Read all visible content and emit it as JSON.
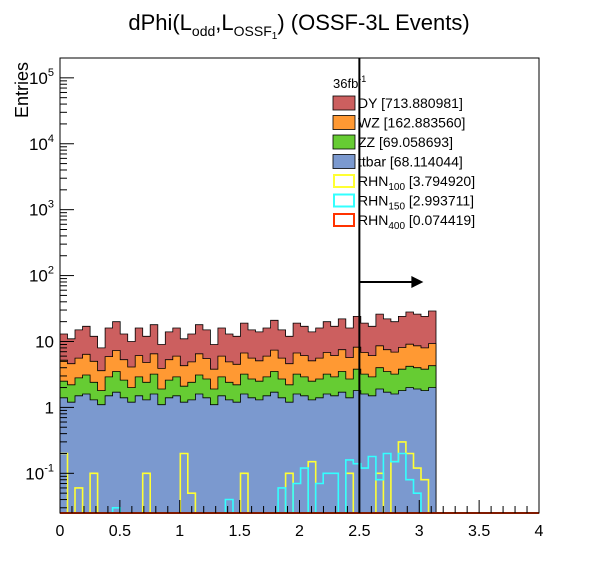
{
  "chart_data": {
    "type": "histogram-stacked-log",
    "title_parts": {
      "main": "dPhi(L",
      "sub1": "odd",
      "mid": ",L",
      "sub2": "OSSF",
      "sub3": "1",
      "end": ") (OSSF-3L Events)"
    },
    "ylabel": "Entries",
    "xlim": [
      0,
      4
    ],
    "ylim": [
      0.025,
      200000
    ],
    "y_scale": "log",
    "x_ticks": [
      "0",
      "0.5",
      "1",
      "1.5",
      "2",
      "2.5",
      "3",
      "3.5",
      "4"
    ],
    "y_ticks": [
      {
        "base": "10",
        "exp": "-1",
        "value": 0.1
      },
      {
        "base": "1",
        "exp": "",
        "value": 1
      },
      {
        "base": "10",
        "exp": "",
        "value": 10
      },
      {
        "base": "10",
        "exp": "2",
        "value": 100
      },
      {
        "base": "10",
        "exp": "3",
        "value": 1000
      },
      {
        "base": "10",
        "exp": "4",
        "value": 10000
      },
      {
        "base": "10",
        "exp": "5",
        "value": 100000
      }
    ],
    "cut_line": {
      "x": 2.5,
      "arrow": "right"
    },
    "lumi_label": {
      "text": "36fb",
      "sup": "-1"
    },
    "bin_width": 0.0628,
    "n_bins": 50,
    "stack_totals": {
      "ttbar": [
        1.4,
        1.2,
        1.5,
        1.6,
        1.3,
        1.1,
        1.5,
        1.7,
        1.4,
        1.2,
        1.5,
        1.3,
        1.6,
        1.1,
        1.4,
        1.5,
        1.2,
        1.3,
        1.6,
        1.4,
        1.1,
        1.5,
        1.3,
        1.2,
        1.6,
        1.4,
        1.3,
        1.5,
        1.7,
        1.4,
        1.2,
        1.6,
        1.5,
        1.3,
        1.4,
        1.6,
        1.5,
        1.7,
        1.4,
        1.8,
        1.6,
        1.5,
        1.9,
        1.7,
        1.6,
        1.8,
        2.0,
        1.9,
        1.8,
        2.0
      ],
      "ZZ": [
        2.5,
        2.2,
        2.8,
        3.1,
        2.4,
        1.8,
        2.9,
        3.5,
        2.6,
        2.0,
        2.9,
        2.4,
        3.2,
        1.9,
        2.6,
        2.9,
        2.1,
        2.4,
        3.1,
        2.7,
        1.9,
        2.9,
        2.4,
        2.2,
        3.2,
        2.7,
        2.5,
        2.9,
        3.5,
        2.7,
        2.2,
        3.2,
        2.9,
        2.5,
        2.7,
        3.2,
        2.9,
        3.5,
        2.7,
        3.8,
        3.2,
        2.9,
        4.0,
        3.5,
        3.2,
        3.8,
        4.2,
        4.0,
        3.8,
        4.3
      ],
      "WZ": [
        5.2,
        4.6,
        5.6,
        6.4,
        5.0,
        3.6,
        5.9,
        7.3,
        5.3,
        4.1,
        6.1,
        4.8,
        6.5,
        3.9,
        5.3,
        6.0,
        4.3,
        4.9,
        6.5,
        5.5,
        3.8,
        6.0,
        4.9,
        4.5,
        6.7,
        5.6,
        5.1,
        6.0,
        7.4,
        5.6,
        4.6,
        6.7,
        6.1,
        5.1,
        5.6,
        6.8,
        6.1,
        7.5,
        5.7,
        8.2,
        6.8,
        6.1,
        8.6,
        7.5,
        6.9,
        8.1,
        9.1,
        8.6,
        8.0,
        9.3
      ],
      "DY": [
        13,
        11,
        15,
        17,
        12,
        8,
        16,
        20,
        13,
        10,
        16,
        12,
        18,
        9,
        14,
        16,
        11,
        13,
        18,
        15,
        9,
        16,
        13,
        12,
        19,
        15,
        14,
        16,
        21,
        15,
        12,
        19,
        17,
        14,
        16,
        20,
        17,
        22,
        16,
        24,
        19,
        17,
        26,
        22,
        20,
        24,
        28,
        26,
        24,
        29
      ]
    },
    "signals": {
      "RHN100": {
        "bins": [
          [
            0,
            0.2
          ],
          [
            2,
            0.06
          ],
          [
            4,
            0.1
          ],
          [
            11,
            0.1
          ],
          [
            16,
            0.2
          ],
          [
            17,
            0.05
          ],
          [
            24,
            0.1
          ],
          [
            30,
            0.1
          ],
          [
            33,
            0.15
          ],
          [
            38,
            0.1
          ],
          [
            42,
            0.1
          ],
          [
            44,
            0.15
          ],
          [
            45,
            0.3
          ],
          [
            46,
            0.2
          ],
          [
            47,
            0.12
          ],
          [
            48,
            0.08
          ]
        ]
      },
      "RHN150": {
        "bins": [
          [
            7,
            0.03
          ],
          [
            22,
            0.04
          ],
          [
            29,
            0.06
          ],
          [
            31,
            0.07
          ],
          [
            32,
            0.12
          ],
          [
            34,
            0.07
          ],
          [
            35,
            0.1
          ],
          [
            36,
            0.1
          ],
          [
            38,
            0.16
          ],
          [
            39,
            0.14
          ],
          [
            40,
            0.12
          ],
          [
            41,
            0.18
          ],
          [
            42,
            0.08
          ],
          [
            43,
            0.2
          ],
          [
            44,
            0.15
          ],
          [
            45,
            0.2
          ],
          [
            46,
            0.08
          ],
          [
            47,
            0.05
          ]
        ]
      },
      "RHN400": {
        "bins": []
      }
    },
    "legend": [
      {
        "key": "DY",
        "name": "DY",
        "sub": "",
        "value": " [713.880981]",
        "fill": "#cc5f5f",
        "stroke": "#000000",
        "style": "fill"
      },
      {
        "key": "WZ",
        "name": "WZ",
        "sub": "",
        "value": " [162.883560]",
        "fill": "#ff9933",
        "stroke": "#000000",
        "style": "fill"
      },
      {
        "key": "ZZ",
        "name": "ZZ",
        "sub": "",
        "value": " [69.058693]",
        "fill": "#66cc33",
        "stroke": "#000000",
        "style": "fill"
      },
      {
        "key": "ttbar",
        "name": "ttbar",
        "sub": "",
        "value": " [68.114044]",
        "fill": "#7b99cf",
        "stroke": "#000000",
        "style": "fill"
      },
      {
        "key": "RHN100",
        "name": "RHN",
        "sub": "100",
        "value": " [3.794920]",
        "fill": "none",
        "stroke": "#ffff33",
        "style": "line"
      },
      {
        "key": "RHN150",
        "name": "RHN",
        "sub": "150",
        "value": " [2.993711]",
        "fill": "none",
        "stroke": "#33ffff",
        "style": "line"
      },
      {
        "key": "RHN400",
        "name": "RHN",
        "sub": "400",
        "value": " [0.074419]",
        "fill": "none",
        "stroke": "#ff3300",
        "style": "line"
      }
    ],
    "grid": false,
    "legend_position": "top-right"
  }
}
